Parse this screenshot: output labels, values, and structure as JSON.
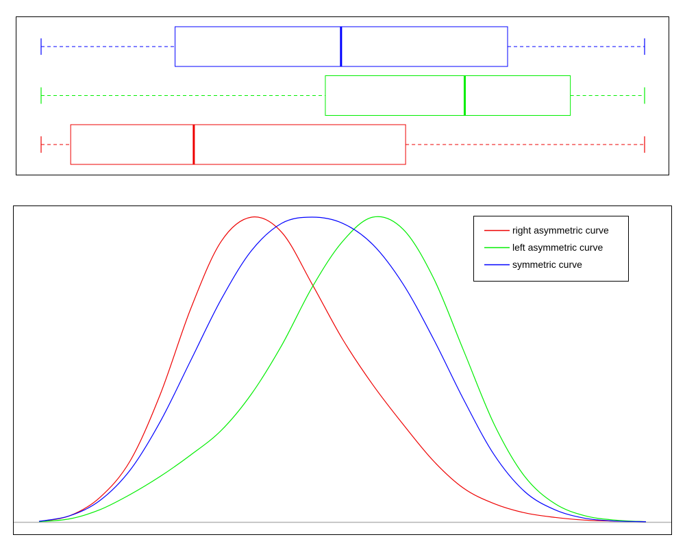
{
  "chart_data": [
    {
      "type": "box",
      "xlim": [
        0,
        100
      ],
      "series": [
        {
          "color": "#0000ff",
          "min": 0,
          "q1": 22.2,
          "median": 49.7,
          "q3": 77.3,
          "max": 100
        },
        {
          "color": "#00ee00",
          "min": 0,
          "q1": 47.1,
          "median": 70.2,
          "q3": 87.7,
          "max": 100
        },
        {
          "color": "#ee0000",
          "min": 0,
          "q1": 4.9,
          "median": 25.3,
          "q3": 60.4,
          "max": 100
        }
      ]
    },
    {
      "type": "line",
      "legend_position": "top-right",
      "xlim": [
        0,
        100
      ],
      "ylim": [
        0,
        100
      ],
      "series": [
        {
          "name": "right asymmetric curve",
          "color": "#ee0000",
          "x": [
            0,
            5,
            10,
            15,
            20,
            25,
            30,
            35,
            40,
            45,
            50,
            55,
            60,
            65,
            70,
            75,
            80,
            85,
            90,
            95,
            100
          ],
          "y": [
            0.2,
            2,
            8,
            20,
            42,
            70,
            92,
            100,
            95,
            78,
            60,
            45,
            32,
            20,
            11,
            6,
            3,
            1.5,
            0.6,
            0.3,
            0.1
          ]
        },
        {
          "name": "left asymmetric curve",
          "color": "#00ee00",
          "x": [
            0,
            5,
            10,
            15,
            20,
            25,
            30,
            35,
            40,
            45,
            50,
            55,
            60,
            65,
            70,
            75,
            80,
            85,
            90,
            95,
            100
          ],
          "y": [
            0.1,
            1,
            4,
            9,
            15,
            22,
            30,
            42,
            58,
            77,
            92,
            100,
            96,
            80,
            56,
            32,
            15,
            6,
            2,
            0.6,
            0.1
          ]
        },
        {
          "name": "symmetric curve",
          "color": "#0000ff",
          "x": [
            0,
            5,
            10,
            15,
            20,
            25,
            30,
            35,
            40,
            45,
            50,
            55,
            60,
            65,
            70,
            75,
            80,
            85,
            90,
            95,
            100
          ],
          "y": [
            0.2,
            2,
            7,
            17,
            33,
            53,
            73,
            89,
            98,
            100,
            98,
            91,
            78,
            60,
            40,
            22,
            10,
            4,
            1.2,
            0.3,
            0.1
          ]
        }
      ]
    }
  ]
}
